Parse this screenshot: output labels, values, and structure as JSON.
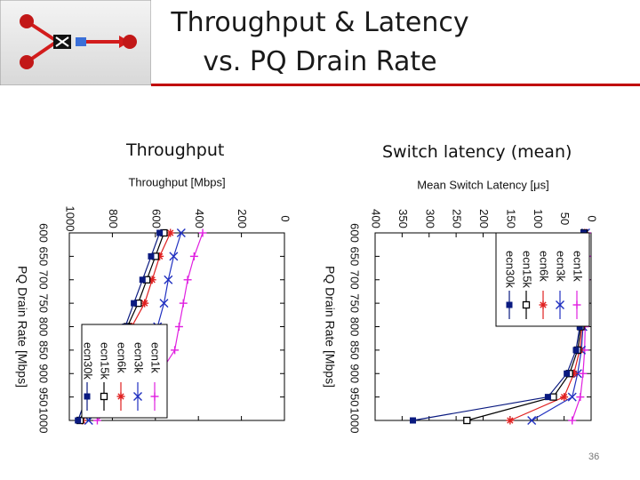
{
  "slide": {
    "title_line1": "Throughput & Latency",
    "title_line2": "vs. PQ Drain Rate",
    "subtitle_left": "Throughput",
    "subtitle_right": "Switch latency (mean)",
    "page_number": "36"
  },
  "colors": {
    "ecn1k": "#e020e0",
    "ecn3k": "#2030c0",
    "ecn6k": "#e02020",
    "ecn15k": "#000000",
    "ecn30k": "#0a1a80",
    "title_bar": "#c00000"
  },
  "chart_data": [
    {
      "type": "line",
      "orientation": "rotated-90-clockwise",
      "title": "Throughput [Mbps]",
      "xlabel": "PQ Drain Rate [Mbps]",
      "ylabel": "",
      "x": [
        600,
        650,
        700,
        750,
        800,
        850,
        900,
        950,
        1000
      ],
      "xticks": [
        "600",
        "650",
        "700",
        "750",
        "800",
        "850",
        "900",
        "950",
        "1000"
      ],
      "ylim": [
        0,
        1000
      ],
      "yticks": [
        "0",
        "200",
        "400",
        "600",
        "800",
        "1000"
      ],
      "legend_position": "bottom-left",
      "grid": false,
      "series": [
        {
          "name": "ecn1k",
          "marker": "plus",
          "values": [
            380,
            420,
            450,
            470,
            490,
            510,
            580,
            760,
            870
          ]
        },
        {
          "name": "ecn3k",
          "marker": "x",
          "values": [
            480,
            515,
            540,
            560,
            590,
            650,
            760,
            870,
            910
          ]
        },
        {
          "name": "ecn6k",
          "marker": "asterisk",
          "values": [
            530,
            580,
            615,
            650,
            710,
            790,
            860,
            900,
            940
          ]
        },
        {
          "name": "ecn15k",
          "marker": "open-square",
          "values": [
            560,
            600,
            640,
            680,
            730,
            800,
            870,
            910,
            950
          ]
        },
        {
          "name": "ecn30k",
          "marker": "filled-square",
          "values": [
            580,
            620,
            660,
            700,
            740,
            810,
            880,
            920,
            960
          ]
        }
      ]
    },
    {
      "type": "line",
      "orientation": "rotated-90-clockwise",
      "title": "Mean Switch Latency [μs]",
      "xlabel": "PQ Drain Rate [Mbps]",
      "ylabel": "",
      "x": [
        600,
        650,
        700,
        750,
        800,
        850,
        900,
        950,
        1000
      ],
      "xticks": [
        "600",
        "650",
        "700",
        "750",
        "800",
        "850",
        "900",
        "950",
        "1000"
      ],
      "ylim": [
        0,
        400
      ],
      "yticks": [
        "0",
        "50",
        "100",
        "150",
        "200",
        "250",
        "300",
        "350",
        "400"
      ],
      "legend_position": "top-right",
      "grid": false,
      "series": [
        {
          "name": "ecn1k",
          "marker": "plus",
          "values": [
            8,
            8,
            9,
            10,
            11,
            12,
            15,
            20,
            35
          ]
        },
        {
          "name": "ecn3k",
          "marker": "x",
          "values": [
            10,
            11,
            12,
            13,
            15,
            18,
            25,
            35,
            110
          ]
        },
        {
          "name": "ecn6k",
          "marker": "asterisk",
          "values": [
            12,
            13,
            14,
            15,
            17,
            21,
            32,
            50,
            150
          ]
        },
        {
          "name": "ecn15k",
          "marker": "open-square",
          "values": [
            13,
            14,
            15,
            16,
            19,
            25,
            40,
            70,
            230
          ]
        },
        {
          "name": "ecn30k",
          "marker": "filled-square",
          "values": [
            14,
            15,
            16,
            18,
            21,
            28,
            45,
            80,
            330
          ]
        }
      ]
    }
  ]
}
